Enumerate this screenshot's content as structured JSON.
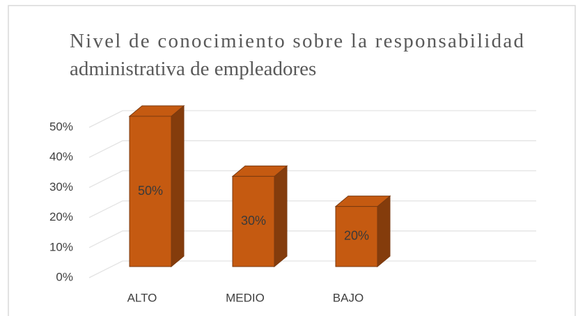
{
  "chart_data": {
    "type": "bar3d",
    "title_lines": [
      "Nivel de conocimiento sobre la responsabilidad",
      "administrativa  de empleadores"
    ],
    "categories": [
      "ALTO",
      "MEDIO",
      "BAJO"
    ],
    "values": [
      50,
      30,
      20
    ],
    "value_labels": [
      "50%",
      "30%",
      "20%"
    ],
    "color": "#c55a11",
    "ylim": [
      0,
      50
    ],
    "yticks": [
      {
        "value": 0,
        "label": "0%"
      },
      {
        "value": 10,
        "label": "10%"
      },
      {
        "value": 20,
        "label": "20%"
      },
      {
        "value": 30,
        "label": "30%"
      },
      {
        "value": 40,
        "label": "40%"
      },
      {
        "value": 50,
        "label": "50%"
      }
    ],
    "grid": true
  }
}
